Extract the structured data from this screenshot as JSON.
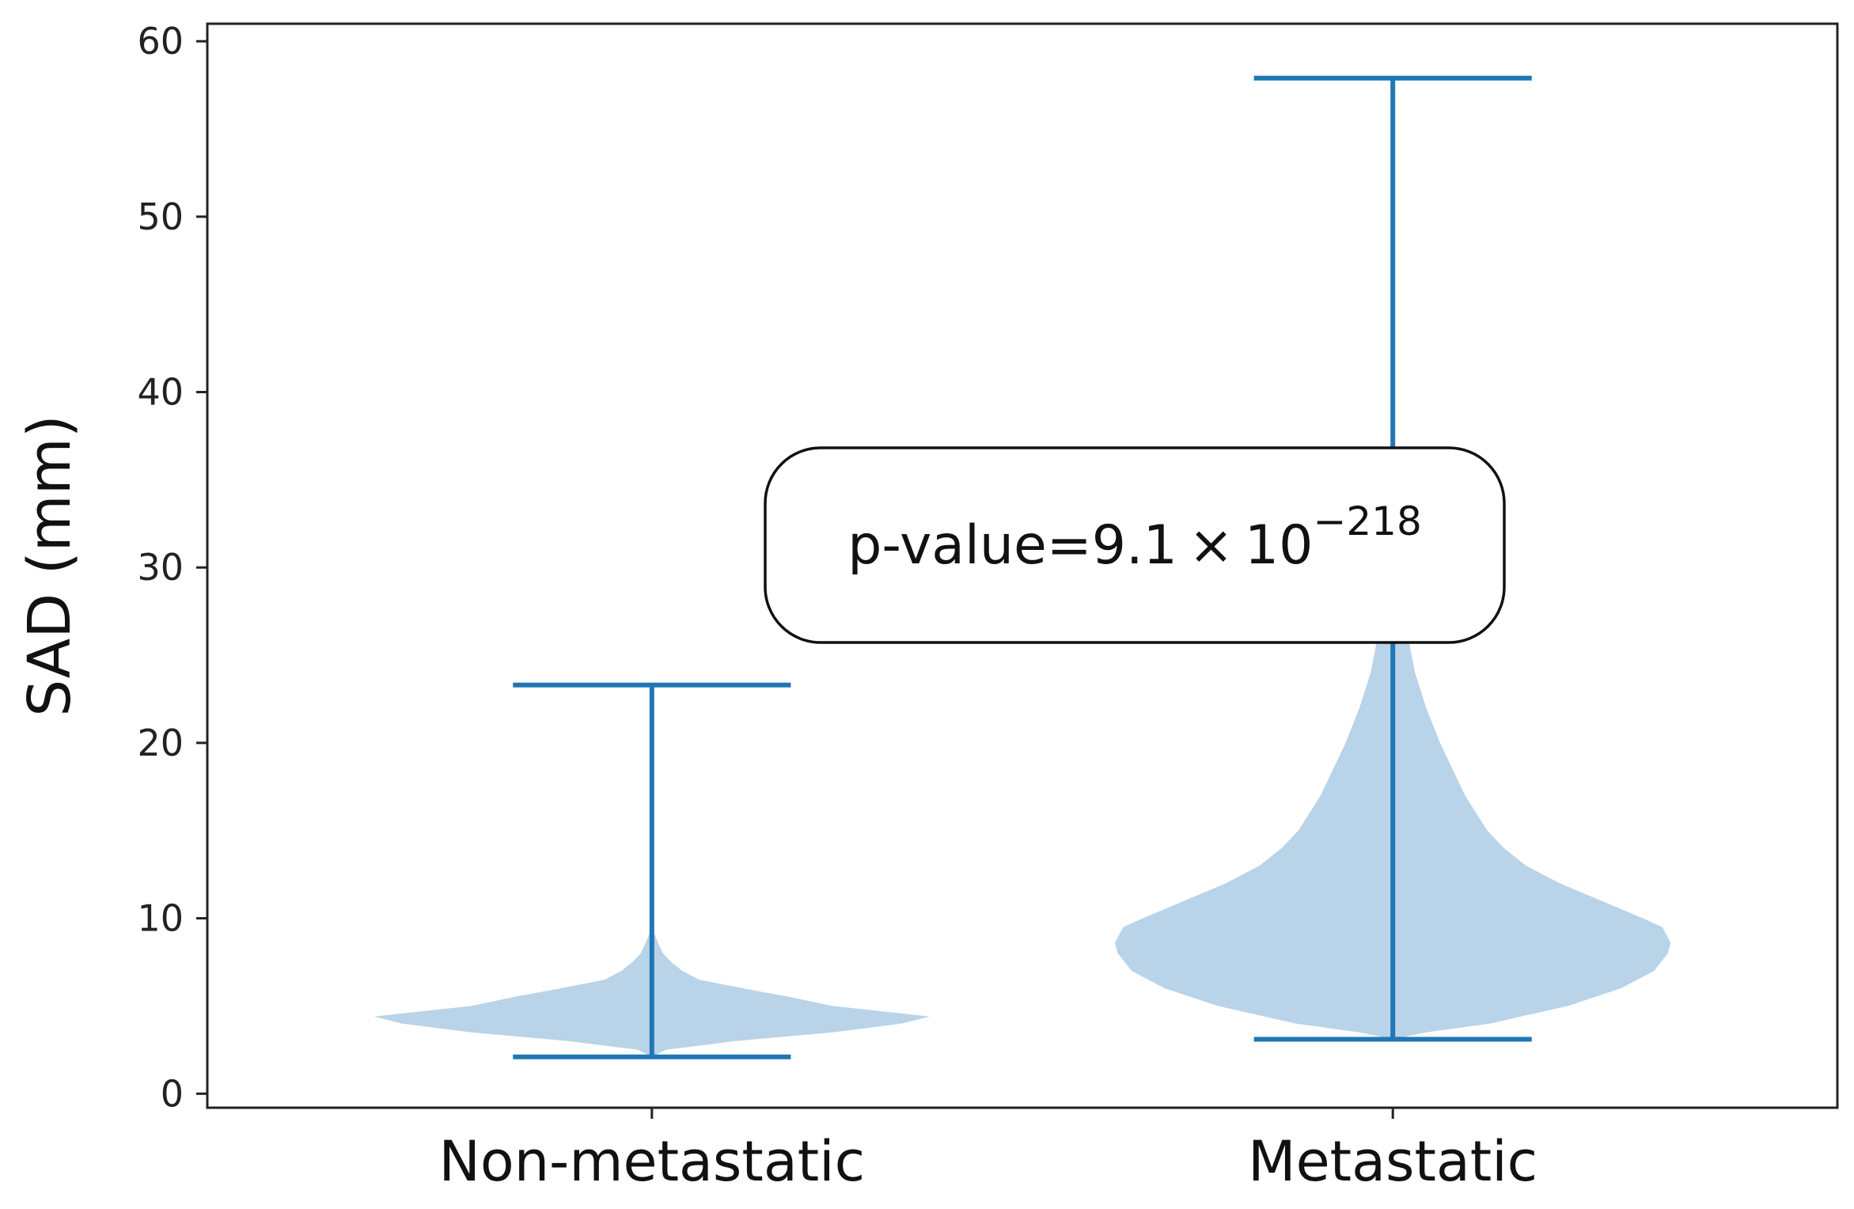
{
  "chart_data": {
    "type": "violin",
    "title": "",
    "xlabel": "",
    "ylabel": "SAD (mm)",
    "ylim": [
      -0.8,
      61
    ],
    "yticks": [
      0,
      10,
      20,
      30,
      40,
      50,
      60
    ],
    "grid": false,
    "categories": [
      "Non-metastatic",
      "Metastatic"
    ],
    "series": [
      {
        "name": "Non-metastatic",
        "min": 2.1,
        "max": 23.3,
        "density_profile": [
          [
            2.1,
            0.0
          ],
          [
            2.5,
            0.05
          ],
          [
            3.0,
            0.3
          ],
          [
            3.5,
            0.65
          ],
          [
            4.0,
            0.9
          ],
          [
            4.4,
            1.0
          ],
          [
            5.0,
            0.65
          ],
          [
            5.5,
            0.5
          ],
          [
            6.0,
            0.33
          ],
          [
            6.5,
            0.17
          ],
          [
            7.0,
            0.11
          ],
          [
            7.5,
            0.07
          ],
          [
            8.0,
            0.04
          ],
          [
            8.5,
            0.025
          ],
          [
            9.0,
            0.012
          ],
          [
            9.5,
            0.0
          ]
        ]
      },
      {
        "name": "Metastatic",
        "min": 3.1,
        "max": 57.9,
        "density_profile": [
          [
            3.1,
            0.0
          ],
          [
            3.5,
            0.12
          ],
          [
            4.0,
            0.35
          ],
          [
            5.0,
            0.63
          ],
          [
            6.0,
            0.82
          ],
          [
            7.0,
            0.94
          ],
          [
            8.0,
            0.99
          ],
          [
            8.6,
            1.0
          ],
          [
            9.5,
            0.97
          ],
          [
            10.0,
            0.9
          ],
          [
            11.0,
            0.75
          ],
          [
            12.0,
            0.6
          ],
          [
            13.0,
            0.48
          ],
          [
            14.0,
            0.4
          ],
          [
            15.0,
            0.34
          ],
          [
            16.0,
            0.3
          ],
          [
            17.0,
            0.26
          ],
          [
            18.0,
            0.23
          ],
          [
            19.0,
            0.2
          ],
          [
            20.0,
            0.17
          ],
          [
            22.0,
            0.12
          ],
          [
            24.0,
            0.08
          ],
          [
            26.0,
            0.055
          ],
          [
            28.0,
            0.035
          ],
          [
            30.0,
            0.02
          ],
          [
            33.0,
            0.008
          ],
          [
            36.0,
            0.003
          ],
          [
            38.0,
            0.0
          ]
        ]
      }
    ],
    "annotation": {
      "prefix": "p-value=",
      "mantissa": "9.1",
      "times": "×",
      "base": "10",
      "exponent": "−218"
    },
    "colors": {
      "line": "#1f77b4",
      "body": "#b9d3e9",
      "axes": "#222222"
    }
  }
}
